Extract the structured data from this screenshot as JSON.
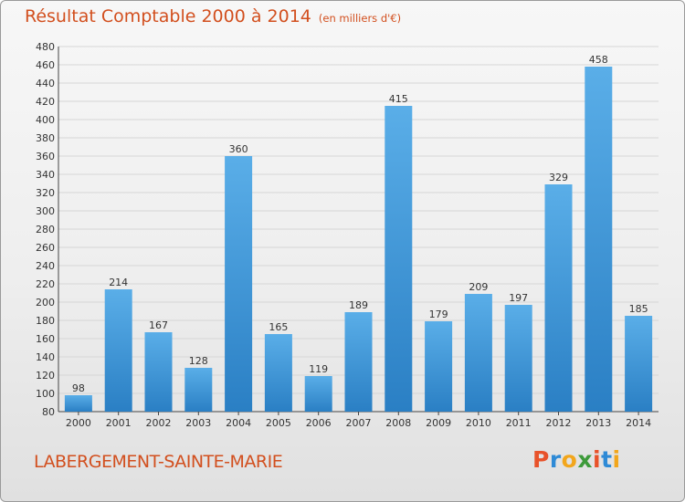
{
  "header": {
    "title": "Résultat Comptable 2000 à 2014",
    "subtitle": "(en milliers d'€)"
  },
  "footer": {
    "commune": "LABERGEMENT-SAINTE-MARIE",
    "logo": "Proxiti",
    "logo_colors": [
      "#e8522a",
      "#2e8ad6",
      "#f2a61c",
      "#3d9a3a",
      "#e8522a",
      "#2e8ad6",
      "#f2a61c"
    ]
  },
  "colors": {
    "title": "#d24f1e",
    "bar_light": "#5aaee8",
    "bar_dark": "#2a7fc4",
    "grid": "#d6d6d6",
    "axis": "#444444"
  },
  "chart_data": {
    "type": "bar",
    "title": "Résultat Comptable 2000 à 2014",
    "subtitle": "(en milliers d'€)",
    "categories": [
      "2000",
      "2001",
      "2002",
      "2003",
      "2004",
      "2005",
      "2006",
      "2007",
      "2008",
      "2009",
      "2010",
      "2011",
      "2012",
      "2013",
      "2014"
    ],
    "values": [
      98,
      214,
      167,
      128,
      360,
      165,
      119,
      189,
      415,
      179,
      209,
      197,
      329,
      458,
      185
    ],
    "ylim": [
      80,
      480
    ],
    "ytick_step": 20,
    "grid": true,
    "data_labels": true
  }
}
